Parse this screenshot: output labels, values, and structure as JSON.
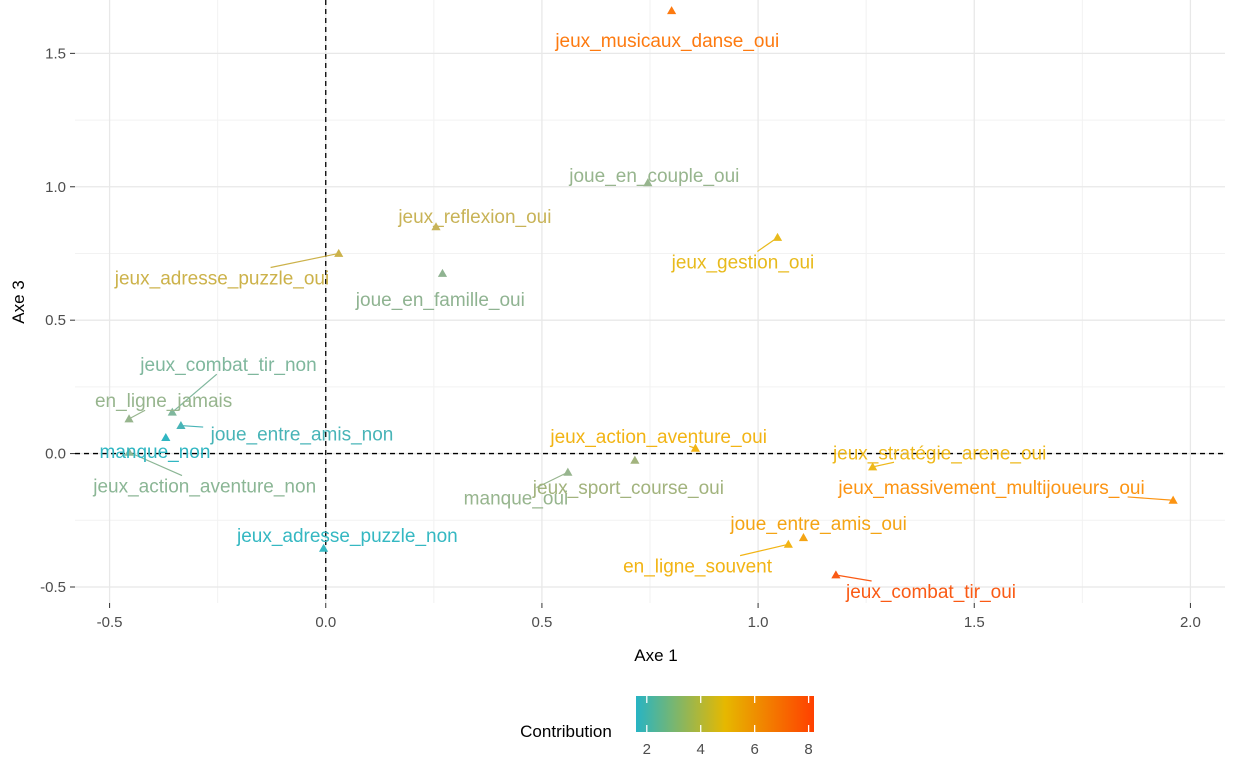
{
  "chart_data": {
    "type": "scatter",
    "xlabel": "Axe 1",
    "ylabel": "Axe 3",
    "xlim": [
      -0.58,
      2.08
    ],
    "ylim": [
      -0.56,
      1.7
    ],
    "x_ticks": [
      -0.5,
      0.0,
      0.5,
      1.0,
      1.5,
      2.0
    ],
    "x_tick_labels": [
      "-0.5",
      "0.0",
      "0.5",
      "1.0",
      "1.5",
      "2.0"
    ],
    "y_ticks": [
      -0.5,
      0.0,
      0.5,
      1.0,
      1.5
    ],
    "y_tick_labels": [
      "-0.5",
      "0.0",
      "0.5",
      "1.0",
      "1.5"
    ],
    "grid": true,
    "reference_lines": {
      "x": 0,
      "y": 0,
      "style": "dashed"
    },
    "legend": {
      "title": "Contribution",
      "placement": "bottom",
      "ticks": [
        2,
        4,
        6,
        8
      ],
      "tick_labels": [
        "2",
        "4",
        "6",
        "8"
      ],
      "range": [
        1.6,
        8.2
      ],
      "colors": [
        "#27b4c4",
        "#e6b800",
        "#ff4000"
      ]
    },
    "points": [
      {
        "label": "jeux_musicaux_danse_oui",
        "x": 0.8,
        "y": 1.66,
        "contribution": 7.0,
        "color": "#fd7a10",
        "label_x": 0.79,
        "label_y": 1.55
      },
      {
        "label": "joue_en_couple_oui",
        "x": 0.745,
        "y": 1.015,
        "contribution": 3.2,
        "color": "#97b58e",
        "label_x": 0.76,
        "label_y": 1.045
      },
      {
        "label": "jeux_reflexion_oui",
        "x": 0.255,
        "y": 0.85,
        "contribution": 4.3,
        "color": "#c8b357",
        "label_x": 0.345,
        "label_y": 0.89
      },
      {
        "label": "jeux_adresse_puzzle_oui",
        "x": 0.03,
        "y": 0.75,
        "contribution": 4.5,
        "color": "#ccb24a",
        "label_x": -0.24,
        "label_y": 0.66
      },
      {
        "label": "jeux_gestion_oui",
        "x": 1.045,
        "y": 0.81,
        "contribution": 5.0,
        "color": "#e8ba1c",
        "label_x": 0.965,
        "label_y": 0.72
      },
      {
        "label": "joue_en_famille_oui",
        "x": 0.27,
        "y": 0.675,
        "contribution": 3.3,
        "color": "#8fb391",
        "label_x": 0.265,
        "label_y": 0.58
      },
      {
        "label": "jeux_combat_tir_non",
        "x": -0.355,
        "y": 0.155,
        "contribution": 2.7,
        "color": "#7fb79d",
        "label_x": -0.225,
        "label_y": 0.335
      },
      {
        "label": "en_ligne_jamais",
        "x": -0.455,
        "y": 0.13,
        "contribution": 3.2,
        "color": "#97b58e",
        "label_x": -0.375,
        "label_y": 0.2
      },
      {
        "label": "joue_entre_amis_non",
        "x": -0.335,
        "y": 0.105,
        "contribution": 2.2,
        "color": "#48b4b7",
        "label_x": -0.055,
        "label_y": 0.075
      },
      {
        "label": "manque_non",
        "x": -0.37,
        "y": 0.06,
        "contribution": 1.8,
        "color": "#30b6c2",
        "label_x": -0.395,
        "label_y": 0.01
      },
      {
        "label": "jeux_action_aventure_non",
        "x": -0.455,
        "y": 0.005,
        "contribution": 3.0,
        "color": "#8bb695",
        "label_x": -0.28,
        "label_y": -0.12
      },
      {
        "label": "jeux_action_aventure_oui",
        "x": 0.855,
        "y": 0.02,
        "contribution": 5.4,
        "color": "#f2b414",
        "label_x": 0.77,
        "label_y": 0.065
      },
      {
        "label": "jeux_stratégie_arene_oui",
        "x": 1.265,
        "y": -0.05,
        "contribution": 5.2,
        "color": "#eeb81a",
        "label_x": 1.42,
        "label_y": 0.005
      },
      {
        "label": "jeux_massivement_multijoueurs_oui",
        "x": 1.96,
        "y": -0.175,
        "contribution": 6.3,
        "color": "#fc9412",
        "label_x": 1.54,
        "label_y": -0.125
      },
      {
        "label": "manque_oui",
        "x": 0.56,
        "y": -0.07,
        "contribution": 3.3,
        "color": "#97b58e",
        "label_x": 0.44,
        "label_y": -0.165
      },
      {
        "label": "jeux_sport_course_oui",
        "x": 0.715,
        "y": -0.025,
        "contribution": 3.6,
        "color": "#a2b37d",
        "label_x": 0.7,
        "label_y": -0.125
      },
      {
        "label": "joue_entre_amis_oui",
        "x": 1.105,
        "y": -0.315,
        "contribution": 5.7,
        "color": "#f4a414",
        "label_x": 1.14,
        "label_y": -0.26
      },
      {
        "label": "en_ligne_souvent",
        "x": 1.07,
        "y": -0.34,
        "contribution": 5.4,
        "color": "#f2b414",
        "label_x": 0.86,
        "label_y": -0.42
      },
      {
        "label": "jeux_combat_tir_oui",
        "x": 1.18,
        "y": -0.455,
        "contribution": 8.1,
        "color": "#fa5a14",
        "label_x": 1.4,
        "label_y": -0.515
      },
      {
        "label": "jeux_adresse_puzzle_non",
        "x": -0.005,
        "y": -0.355,
        "contribution": 2.1,
        "color": "#35b8c2",
        "label_x": 0.05,
        "label_y": -0.305
      }
    ]
  }
}
